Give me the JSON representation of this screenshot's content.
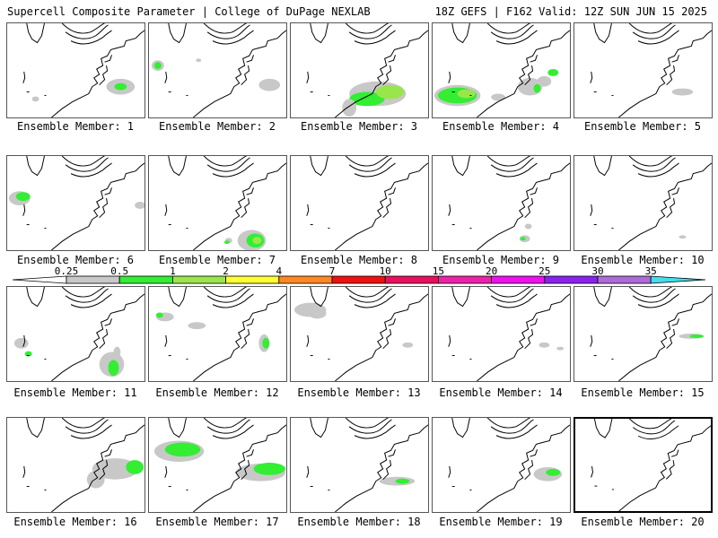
{
  "header": {
    "left": "Supercell Composite Parameter | College of DuPage NEXLAB",
    "right": "18Z GEFS | F162 Valid: 12Z SUN JUN 15 2025"
  },
  "colors": {
    "gray": "#c8c8c8",
    "green": "#33ee33",
    "lightgreen": "#99e64c",
    "yellow": "#ffff33",
    "orange": "#ff8822",
    "red": "#ee1111",
    "crimson": "#e8105c",
    "pink": "#ee22aa",
    "magenta": "#ee11ee",
    "purple": "#8a22ee",
    "lavender": "#b06ad8",
    "cyan": "#44ddee",
    "line": "#000000",
    "border": "#555555"
  },
  "colorbar": {
    "labels": [
      "0.25",
      "0.5",
      "1",
      "2",
      "4",
      "7",
      "10",
      "15",
      "20",
      "25",
      "30",
      "35"
    ]
  },
  "panels": [
    {
      "label": "Ensemble Member: 1"
    },
    {
      "label": "Ensemble Member: 2"
    },
    {
      "label": "Ensemble Member: 3"
    },
    {
      "label": "Ensemble Member: 4"
    },
    {
      "label": "Ensemble Member: 5"
    },
    {
      "label": "Ensemble Member: 6"
    },
    {
      "label": "Ensemble Member: 7"
    },
    {
      "label": "Ensemble Member: 8"
    },
    {
      "label": "Ensemble Member: 9"
    },
    {
      "label": "Ensemble Member: 10"
    },
    {
      "label": "Ensemble Member: 11"
    },
    {
      "label": "Ensemble Member: 12"
    },
    {
      "label": "Ensemble Member: 13"
    },
    {
      "label": "Ensemble Member: 14"
    },
    {
      "label": "Ensemble Member: 15"
    },
    {
      "label": "Ensemble Member: 16"
    },
    {
      "label": "Ensemble Member: 17"
    },
    {
      "label": "Ensemble Member: 18"
    },
    {
      "label": "Ensemble Member: 19"
    },
    {
      "label": "Ensemble Member: 20"
    }
  ]
}
